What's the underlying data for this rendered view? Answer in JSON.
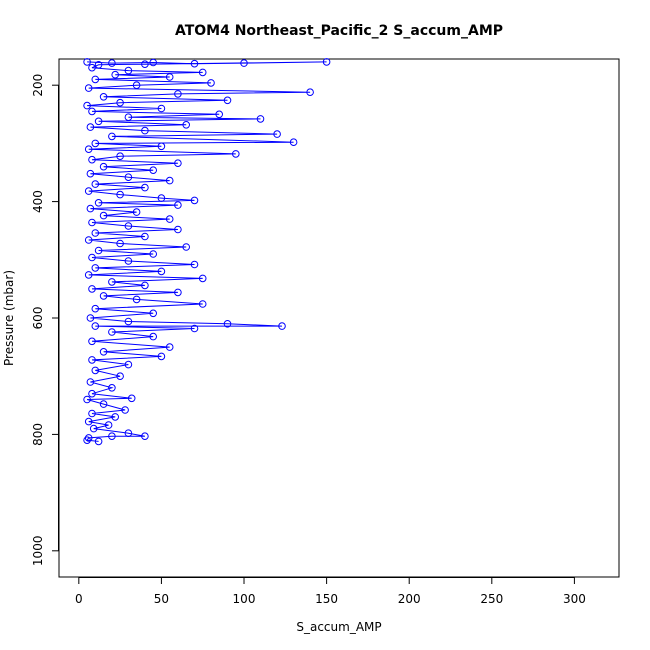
{
  "chart_data": {
    "type": "scatter",
    "title": "ATOM4 Northeast_Pacific_2 S_accum_AMP",
    "xlabel": "S_accum_AMP",
    "ylabel": "Pressure (mbar)",
    "xlim": [
      -12,
      327
    ],
    "ylim": [
      1045,
      155
    ],
    "y_reversed": true,
    "x_ticks": [
      0,
      50,
      100,
      150,
      200,
      250,
      300
    ],
    "y_ticks": [
      200,
      400,
      600,
      800,
      1000
    ],
    "grid": false,
    "legend": "none",
    "marker": "open-circle",
    "connect_points": true,
    "color": "#0000ff",
    "series": [
      {
        "points": [
          [
            5,
            160
          ],
          [
            20,
            162
          ],
          [
            45,
            161
          ],
          [
            70,
            163
          ],
          [
            100,
            162
          ],
          [
            150,
            160
          ],
          [
            40,
            164
          ],
          [
            12,
            165
          ],
          [
            8,
            170
          ],
          [
            30,
            175
          ],
          [
            75,
            178
          ],
          [
            22,
            182
          ],
          [
            55,
            186
          ],
          [
            10,
            190
          ],
          [
            80,
            196
          ],
          [
            35,
            200
          ],
          [
            6,
            205
          ],
          [
            140,
            212
          ],
          [
            60,
            215
          ],
          [
            15,
            220
          ],
          [
            90,
            226
          ],
          [
            25,
            230
          ],
          [
            5,
            235
          ],
          [
            50,
            240
          ],
          [
            8,
            245
          ],
          [
            85,
            250
          ],
          [
            30,
            255
          ],
          [
            110,
            258
          ],
          [
            12,
            262
          ],
          [
            65,
            268
          ],
          [
            7,
            272
          ],
          [
            40,
            278
          ],
          [
            120,
            284
          ],
          [
            20,
            288
          ],
          [
            130,
            298
          ],
          [
            10,
            300
          ],
          [
            50,
            305
          ],
          [
            6,
            310
          ],
          [
            95,
            318
          ],
          [
            25,
            322
          ],
          [
            8,
            328
          ],
          [
            60,
            334
          ],
          [
            15,
            340
          ],
          [
            45,
            346
          ],
          [
            7,
            352
          ],
          [
            30,
            358
          ],
          [
            55,
            364
          ],
          [
            10,
            370
          ],
          [
            40,
            376
          ],
          [
            6,
            382
          ],
          [
            25,
            388
          ],
          [
            50,
            394
          ],
          [
            70,
            398
          ],
          [
            12,
            402
          ],
          [
            60,
            406
          ],
          [
            7,
            412
          ],
          [
            35,
            418
          ],
          [
            15,
            424
          ],
          [
            55,
            430
          ],
          [
            8,
            436
          ],
          [
            30,
            442
          ],
          [
            60,
            448
          ],
          [
            10,
            454
          ],
          [
            40,
            460
          ],
          [
            6,
            466
          ],
          [
            25,
            472
          ],
          [
            65,
            478
          ],
          [
            12,
            484
          ],
          [
            45,
            490
          ],
          [
            8,
            496
          ],
          [
            30,
            502
          ],
          [
            70,
            508
          ],
          [
            10,
            514
          ],
          [
            50,
            520
          ],
          [
            6,
            526
          ],
          [
            75,
            532
          ],
          [
            20,
            538
          ],
          [
            40,
            544
          ],
          [
            8,
            550
          ],
          [
            60,
            556
          ],
          [
            15,
            562
          ],
          [
            35,
            568
          ],
          [
            75,
            576
          ],
          [
            10,
            584
          ],
          [
            45,
            592
          ],
          [
            7,
            600
          ],
          [
            30,
            606
          ],
          [
            90,
            610
          ],
          [
            123,
            614
          ],
          [
            10,
            614
          ],
          [
            70,
            618
          ],
          [
            20,
            624
          ],
          [
            45,
            632
          ],
          [
            8,
            640
          ],
          [
            55,
            650
          ],
          [
            15,
            658
          ],
          [
            50,
            666
          ],
          [
            8,
            672
          ],
          [
            30,
            680
          ],
          [
            10,
            690
          ],
          [
            25,
            700
          ],
          [
            7,
            710
          ],
          [
            20,
            720
          ],
          [
            8,
            730
          ],
          [
            32,
            738
          ],
          [
            5,
            740
          ],
          [
            15,
            748
          ],
          [
            28,
            758
          ],
          [
            8,
            764
          ],
          [
            22,
            770
          ],
          [
            6,
            778
          ],
          [
            18,
            784
          ],
          [
            9,
            790
          ],
          [
            30,
            798
          ],
          [
            40,
            803
          ],
          [
            20,
            803
          ],
          [
            6,
            806
          ],
          [
            5,
            810
          ],
          [
            12,
            812
          ]
        ]
      }
    ]
  }
}
